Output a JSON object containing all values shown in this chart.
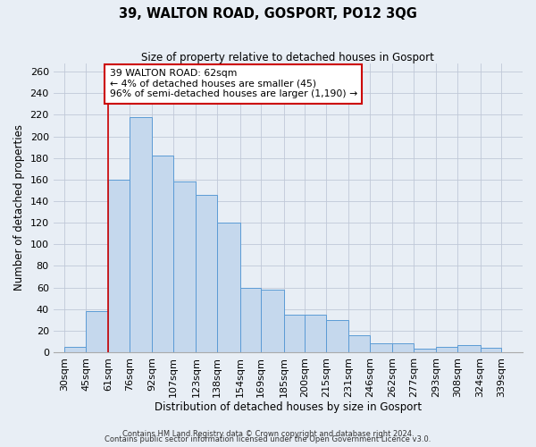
{
  "title": "39, WALTON ROAD, GOSPORT, PO12 3QG",
  "subtitle": "Size of property relative to detached houses in Gosport",
  "xlabel": "Distribution of detached houses by size in Gosport",
  "ylabel": "Number of detached properties",
  "bar_left_edges": [
    30,
    45,
    61,
    76,
    92,
    107,
    123,
    138,
    154,
    169,
    185,
    200,
    215,
    231,
    246,
    262,
    277,
    293,
    308,
    324
  ],
  "bar_widths": [
    15,
    16,
    15,
    16,
    15,
    16,
    15,
    16,
    15,
    16,
    15,
    15,
    16,
    15,
    16,
    15,
    16,
    15,
    16,
    15
  ],
  "bar_heights": [
    5,
    38,
    160,
    218,
    182,
    158,
    146,
    120,
    60,
    58,
    35,
    35,
    30,
    16,
    8,
    8,
    3,
    5,
    7,
    4
  ],
  "bar_color": "#c5d8ed",
  "bar_edge_color": "#5b9bd5",
  "grid_color": "#c0c8d8",
  "background_color": "#e8eef5",
  "marker_x": 61,
  "marker_color": "#cc0000",
  "annotation_title": "39 WALTON ROAD: 62sqm",
  "annotation_line1": "← 4% of detached houses are smaller (45)",
  "annotation_line2": "96% of semi-detached houses are larger (1,190) →",
  "annotation_box_color": "#ffffff",
  "annotation_box_edge": "#cc0000",
  "yticks": [
    0,
    20,
    40,
    60,
    80,
    100,
    120,
    140,
    160,
    180,
    200,
    220,
    240,
    260
  ],
  "xlabels": [
    "30sqm",
    "45sqm",
    "61sqm",
    "76sqm",
    "92sqm",
    "107sqm",
    "123sqm",
    "138sqm",
    "154sqm",
    "169sqm",
    "185sqm",
    "200sqm",
    "215sqm",
    "231sqm",
    "246sqm",
    "262sqm",
    "277sqm",
    "293sqm",
    "308sqm",
    "324sqm",
    "339sqm"
  ],
  "xtick_positions": [
    30,
    45,
    61,
    76,
    92,
    107,
    123,
    138,
    154,
    169,
    185,
    200,
    215,
    231,
    246,
    262,
    277,
    293,
    308,
    324,
    339
  ],
  "xlim": [
    22,
    354
  ],
  "ylim": [
    0,
    268
  ],
  "footer1": "Contains HM Land Registry data © Crown copyright and database right 2024.",
  "footer2": "Contains public sector information licensed under the Open Government Licence v3.0."
}
